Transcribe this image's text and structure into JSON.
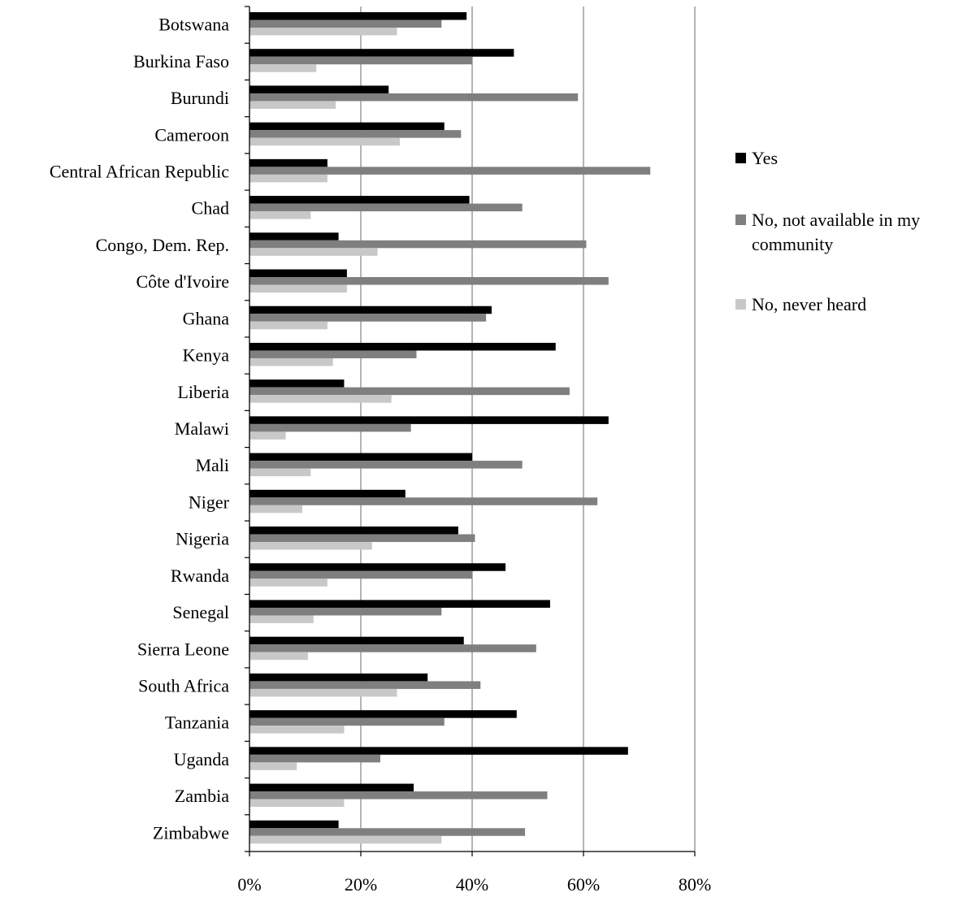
{
  "chart_data": {
    "type": "bar",
    "orientation": "horizontal",
    "categories": [
      "Botswana",
      "Burkina Faso",
      "Burundi",
      "Cameroon",
      "Central African Republic",
      "Chad",
      "Congo, Dem. Rep.",
      "Côte d'Ivoire",
      "Ghana",
      "Kenya",
      "Liberia",
      "Malawi",
      "Mali",
      "Niger",
      "Nigeria",
      "Rwanda",
      "Senegal",
      "Sierra Leone",
      "South Africa",
      "Tanzania",
      "Uganda",
      "Zambia",
      "Zimbabwe"
    ],
    "series": [
      {
        "name": "Yes",
        "color": "#000000",
        "values": [
          39,
          47.5,
          25,
          35,
          14,
          39.5,
          16,
          17.5,
          43.5,
          55,
          17,
          64.5,
          40,
          28,
          37.5,
          46,
          54,
          38.5,
          32,
          48,
          68,
          29.5,
          16
        ]
      },
      {
        "name": "No, not available in my community",
        "color": "#7f7f7f",
        "values": [
          34.5,
          40,
          59,
          38,
          72,
          49,
          60.5,
          64.5,
          42.5,
          30,
          57.5,
          29,
          49,
          62.5,
          40.5,
          40,
          34.5,
          51.5,
          41.5,
          35,
          23.5,
          53.5,
          49.5
        ]
      },
      {
        "name": "No, never heard",
        "color": "#c8c8c8",
        "values": [
          26.5,
          12,
          15.5,
          27,
          14,
          11,
          23,
          17.5,
          14,
          15,
          25.5,
          6.5,
          11,
          9.5,
          22,
          14,
          11.5,
          10.5,
          26.5,
          17,
          8.5,
          17,
          34.5
        ]
      }
    ],
    "xlim": [
      0,
      80
    ],
    "xticks": [
      "0%",
      "20%",
      "40%",
      "60%",
      "80%"
    ],
    "xticks_values": [
      0,
      20,
      40,
      60,
      80
    ],
    "grid": true,
    "legend_position": "right"
  },
  "legend": {
    "items": [
      {
        "label": "Yes",
        "color": "#000000"
      },
      {
        "label": "No, not available in my community",
        "color": "#7f7f7f"
      },
      {
        "label": "No, never heard",
        "color": "#c8c8c8"
      }
    ]
  }
}
